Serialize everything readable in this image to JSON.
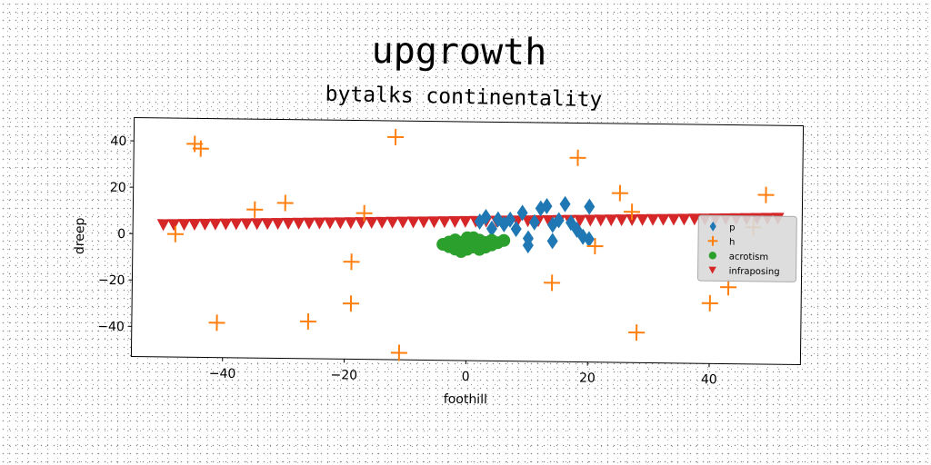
{
  "title": "upgrowth",
  "subtitle": "bytalks continentality",
  "chart_data": {
    "type": "scatter",
    "xlabel": "foothill",
    "ylabel": "dreep",
    "xlim": [
      -55,
      55
    ],
    "ylim": [
      -53,
      50
    ],
    "xticks": [
      -40,
      -20,
      0,
      20,
      40
    ],
    "yticks": [
      40,
      20,
      0,
      -20,
      -40
    ],
    "xtick_labels": [
      "−40",
      "−20",
      "0",
      "20",
      "40"
    ],
    "ytick_labels": [
      "40",
      "20",
      "0",
      "−20",
      "−40"
    ],
    "legend_position": "center-right",
    "grid": false,
    "series": [
      {
        "name": "p",
        "marker": "diamond",
        "color": "#1f77b4",
        "points": [
          [
            2,
            7
          ],
          [
            3,
            9
          ],
          [
            4,
            4
          ],
          [
            5,
            8
          ],
          [
            6,
            6
          ],
          [
            7,
            8
          ],
          [
            8,
            4
          ],
          [
            9,
            11
          ],
          [
            10,
            0
          ],
          [
            10,
            -3
          ],
          [
            11,
            7
          ],
          [
            12,
            13
          ],
          [
            13,
            14
          ],
          [
            14,
            6
          ],
          [
            14,
            -1
          ],
          [
            15,
            8
          ],
          [
            16,
            15
          ],
          [
            17,
            7
          ],
          [
            18,
            4
          ],
          [
            19,
            1
          ],
          [
            20,
            14
          ],
          [
            20,
            0
          ]
        ]
      },
      {
        "name": "h",
        "marker": "plus",
        "color": "#ff7f0e",
        "points": [
          [
            -45,
            39
          ],
          [
            -44,
            37
          ],
          [
            -12,
            43
          ],
          [
            18,
            35
          ],
          [
            -35,
            11
          ],
          [
            -30,
            14
          ],
          [
            -17,
            10
          ],
          [
            25,
            20
          ],
          [
            27,
            12
          ],
          [
            49,
            20
          ],
          [
            -48,
            0
          ],
          [
            21,
            -3
          ],
          [
            47,
            6
          ],
          [
            -19,
            -11
          ],
          [
            14,
            -19
          ],
          [
            43,
            -20
          ],
          [
            -19,
            -29
          ],
          [
            40,
            -27
          ],
          [
            -41,
            -38
          ],
          [
            -26,
            -37
          ],
          [
            28,
            -40
          ],
          [
            -11,
            -50
          ]
        ]
      },
      {
        "name": "acrotism",
        "marker": "circle",
        "color": "#2ca02c",
        "points": [
          [
            -4,
            -3
          ],
          [
            -3,
            -4
          ],
          [
            -3,
            -2
          ],
          [
            -2,
            -3
          ],
          [
            -2,
            -5
          ],
          [
            -1,
            -2
          ],
          [
            -1,
            -4
          ],
          [
            0,
            -3
          ],
          [
            0,
            -1
          ],
          [
            0,
            -5
          ],
          [
            1,
            -2
          ],
          [
            1,
            -4
          ],
          [
            2,
            -3
          ],
          [
            2,
            -1
          ],
          [
            3,
            -4
          ],
          [
            3,
            -2
          ],
          [
            4,
            -3
          ],
          [
            4,
            -1
          ],
          [
            5,
            -2
          ],
          [
            6,
            -1
          ],
          [
            -2,
            -1
          ],
          [
            0,
            0
          ],
          [
            1,
            0
          ],
          [
            2,
            -5
          ],
          [
            -1,
            -6
          ]
        ]
      },
      {
        "name": "infraposing",
        "marker": "triangle-down",
        "color": "#d62728",
        "x_range": [
          -50,
          51
        ],
        "count": 60,
        "y_start": 4,
        "y_end": 10
      }
    ]
  }
}
